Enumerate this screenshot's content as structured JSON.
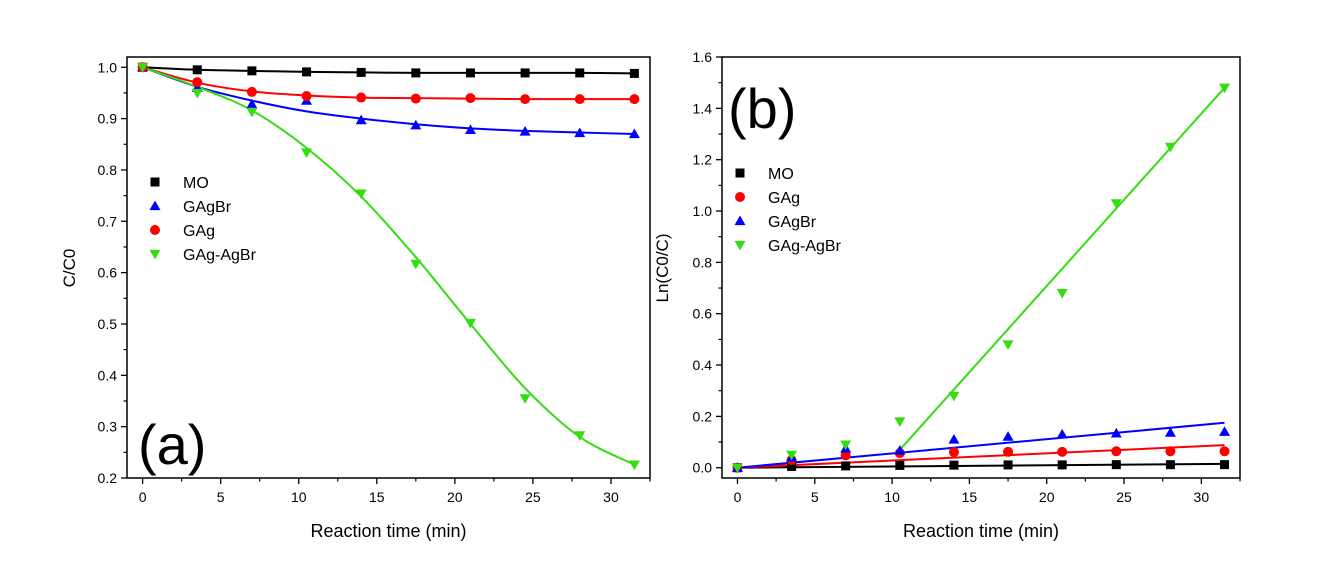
{
  "chart_data": [
    {
      "type": "scatter",
      "panel_label": "(a)",
      "xlabel": "Reaction time (min)",
      "ylabel": "C/C0",
      "xlim": [
        -1,
        32.5
      ],
      "ylim": [
        0.2,
        1.02
      ],
      "xticks": [
        "0",
        "5",
        "10",
        "15",
        "20",
        "25",
        "30"
      ],
      "xtick_values": [
        0,
        5,
        10,
        15,
        20,
        25,
        30
      ],
      "yticks": [
        "0.2",
        "0.3",
        "0.4",
        "0.5",
        "0.6",
        "0.7",
        "0.8",
        "0.9",
        "1.0"
      ],
      "ytick_values": [
        0.2,
        0.3,
        0.4,
        0.5,
        0.6,
        0.7,
        0.8,
        0.9,
        1.0
      ],
      "legend_position": "middle-left",
      "x": [
        0,
        3.5,
        7,
        10.5,
        14,
        17.5,
        21,
        24.5,
        28,
        31.5
      ],
      "series": [
        {
          "name": "MO",
          "marker": "square",
          "color": "#000000",
          "values": [
            1.0,
            0.995,
            0.993,
            0.991,
            0.99,
            0.989,
            0.989,
            0.989,
            0.989,
            0.988
          ],
          "fit": [
            [
              0,
              1.0
            ],
            [
              3.5,
              0.995
            ],
            [
              7,
              0.993
            ],
            [
              10.5,
              0.991
            ],
            [
              14,
              0.99
            ],
            [
              17.5,
              0.989
            ],
            [
              21,
              0.989
            ],
            [
              24.5,
              0.989
            ],
            [
              28,
              0.989
            ],
            [
              31.5,
              0.988
            ]
          ]
        },
        {
          "name": "GAgBr",
          "marker": "triangle-up",
          "color": "#0000ff",
          "values": [
            1.0,
            0.96,
            0.928,
            0.935,
            0.897,
            0.887,
            0.878,
            0.875,
            0.872,
            0.87
          ],
          "fit": [
            [
              0,
              1.0
            ],
            [
              3.5,
              0.962
            ],
            [
              7,
              0.935
            ],
            [
              10.5,
              0.914
            ],
            [
              14,
              0.9
            ],
            [
              17.5,
              0.889
            ],
            [
              21,
              0.881
            ],
            [
              24.5,
              0.876
            ],
            [
              28,
              0.873
            ],
            [
              31.5,
              0.87
            ]
          ]
        },
        {
          "name": "GAg",
          "marker": "circle",
          "color": "#ff0000",
          "values": [
            1.0,
            0.971,
            0.952,
            0.944,
            0.941,
            0.939,
            0.94,
            0.938,
            0.938,
            0.938
          ],
          "fit": [
            [
              0,
              1.0
            ],
            [
              3.5,
              0.97
            ],
            [
              7,
              0.953
            ],
            [
              10.5,
              0.945
            ],
            [
              14,
              0.941
            ],
            [
              17.5,
              0.94
            ],
            [
              21,
              0.939
            ],
            [
              24.5,
              0.938
            ],
            [
              28,
              0.938
            ],
            [
              31.5,
              0.938
            ]
          ]
        },
        {
          "name": "GAg-AgBr",
          "marker": "triangle-down",
          "color": "#33dd11",
          "values": [
            1.0,
            0.95,
            0.913,
            0.834,
            0.754,
            0.617,
            0.502,
            0.355,
            0.283,
            0.226
          ],
          "fit": [
            [
              0,
              1.0
            ],
            [
              3.5,
              0.962
            ],
            [
              7,
              0.916
            ],
            [
              10.5,
              0.843
            ],
            [
              14,
              0.748
            ],
            [
              17.5,
              0.63
            ],
            [
              21,
              0.5
            ],
            [
              24.5,
              0.375
            ],
            [
              28,
              0.28
            ],
            [
              31.5,
              0.226
            ]
          ]
        }
      ]
    },
    {
      "type": "scatter",
      "panel_label": "(b)",
      "xlabel": "Reaction time (min)",
      "ylabel": "Ln(C0/C)",
      "xlim": [
        -1,
        32.5
      ],
      "ylim": [
        -0.04,
        1.6
      ],
      "xticks": [
        "0",
        "5",
        "10",
        "15",
        "20",
        "25",
        "30"
      ],
      "xtick_values": [
        0,
        5,
        10,
        15,
        20,
        25,
        30
      ],
      "yticks": [
        "0.0",
        "0.2",
        "0.4",
        "0.6",
        "0.8",
        "1.0",
        "1.2",
        "1.4",
        "1.6"
      ],
      "ytick_values": [
        0,
        0.2,
        0.4,
        0.6,
        0.8,
        1.0,
        1.2,
        1.4,
        1.6
      ],
      "legend_position": "top-left",
      "x": [
        0,
        3.5,
        7,
        10.5,
        14,
        17.5,
        21,
        24.5,
        28,
        31.5
      ],
      "series": [
        {
          "name": "MO",
          "marker": "square",
          "color": "#000000",
          "values": [
            0,
            0.005,
            0.007,
            0.009,
            0.01,
            0.011,
            0.011,
            0.012,
            0.012,
            0.012
          ],
          "fit": [
            [
              0,
              0
            ],
            [
              31.5,
              0.015
            ]
          ]
        },
        {
          "name": "GAg",
          "marker": "circle",
          "color": "#ff0000",
          "values": [
            0,
            0.03,
            0.048,
            0.057,
            0.061,
            0.062,
            0.062,
            0.064,
            0.064,
            0.064
          ],
          "fit": [
            [
              0,
              0
            ],
            [
              31.5,
              0.088
            ]
          ]
        },
        {
          "name": "GAgBr",
          "marker": "triangle-up",
          "color": "#0000ff",
          "values": [
            0,
            0.04,
            0.075,
            0.067,
            0.11,
            0.121,
            0.13,
            0.134,
            0.137,
            0.14
          ],
          "fit": [
            [
              0,
              0
            ],
            [
              31.5,
              0.175
            ]
          ]
        },
        {
          "name": "GAg-AgBr",
          "marker": "triangle-down",
          "color": "#33dd11",
          "values": [
            0,
            0.05,
            0.09,
            0.18,
            0.28,
            0.48,
            0.68,
            1.03,
            1.25,
            1.48
          ],
          "fit": [
            [
              10.5,
              0.07
            ],
            [
              31.5,
              1.48
            ]
          ]
        }
      ]
    }
  ]
}
